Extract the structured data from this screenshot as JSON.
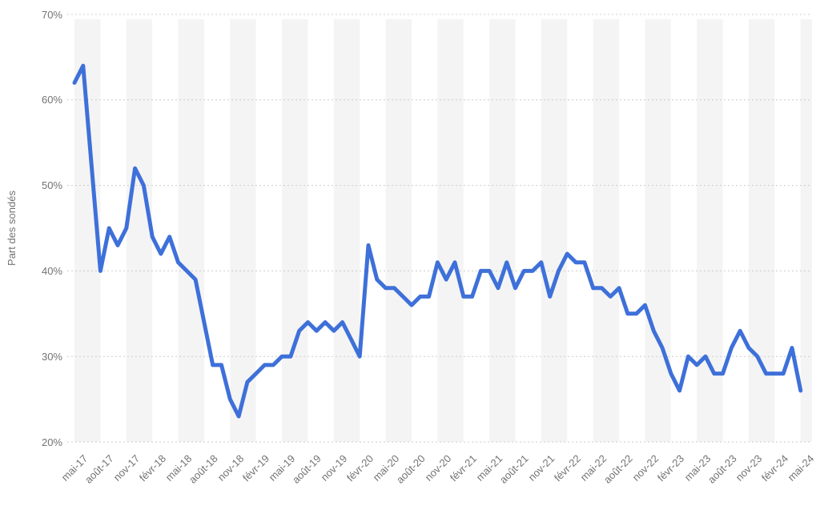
{
  "chart_data": {
    "type": "line",
    "title": "",
    "ylabel": "Part des sondés",
    "ylim": [
      20,
      70
    ],
    "ytick_values": [
      70,
      60,
      50,
      40,
      30,
      20
    ],
    "ytick_labels": [
      "70%",
      "60%",
      "50%",
      "40%",
      "30%",
      "20%"
    ],
    "x_tick_labels": [
      "mai-17",
      "août-17",
      "nov-17",
      "févr-18",
      "mai-18",
      "août-18",
      "nov-18",
      "févr-19",
      "mai-19",
      "août-19",
      "nov-19",
      "févr-20",
      "mai-20",
      "août-20",
      "nov-20",
      "févr-21",
      "mai-21",
      "août-21",
      "nov-21",
      "févr-22",
      "mai-22",
      "août-22",
      "nov-22",
      "févr-23",
      "mai-23",
      "août-23",
      "nov-23",
      "févr-24",
      "mai-24"
    ],
    "grid": "horizontal-dotted",
    "legend": "none",
    "background_stripes": "alternating-quarterly",
    "series": [
      {
        "name": "Part des sondés",
        "color": "#3E70D9",
        "x": [
          "mai-17",
          "juin-17",
          "juil-17",
          "août-17",
          "sept-17",
          "oct-17",
          "nov-17",
          "déc-17",
          "janv-18",
          "févr-18",
          "mars-18",
          "avr-18",
          "mai-18",
          "juin-18",
          "juil-18",
          "août-18",
          "sept-18",
          "oct-18",
          "nov-18",
          "déc-18",
          "janv-19",
          "févr-19",
          "mars-19",
          "avr-19",
          "mai-19",
          "juin-19",
          "juil-19",
          "août-19",
          "sept-19",
          "oct-19",
          "nov-19",
          "déc-19",
          "janv-20",
          "févr-20",
          "mars-20",
          "avr-20",
          "mai-20",
          "juin-20",
          "juil-20",
          "août-20",
          "sept-20",
          "oct-20",
          "nov-20",
          "déc-20",
          "janv-21",
          "févr-21",
          "mars-21",
          "avr-21",
          "mai-21",
          "juin-21",
          "juil-21",
          "août-21",
          "sept-21",
          "oct-21",
          "nov-21",
          "déc-21",
          "janv-22",
          "févr-22",
          "mars-22",
          "avr-22",
          "mai-22",
          "juin-22",
          "juil-22",
          "août-22",
          "sept-22",
          "oct-22",
          "nov-22",
          "déc-22",
          "janv-23",
          "févr-23",
          "mars-23",
          "avr-23",
          "mai-23",
          "juin-23",
          "juil-23",
          "août-23",
          "sept-23",
          "oct-23",
          "nov-23",
          "déc-23",
          "janv-24",
          "févr-24",
          "mars-24",
          "avr-24",
          "mai-24"
        ],
        "values": [
          62,
          64,
          52,
          40,
          45,
          43,
          45,
          52,
          50,
          44,
          42,
          44,
          41,
          40,
          39,
          34,
          29,
          29,
          25,
          23,
          27,
          28,
          29,
          29,
          30,
          30,
          33,
          34,
          33,
          34,
          33,
          34,
          32,
          30,
          43,
          39,
          38,
          38,
          37,
          36,
          37,
          37,
          41,
          39,
          41,
          37,
          37,
          40,
          40,
          38,
          41,
          38,
          40,
          40,
          41,
          37,
          40,
          42,
          41,
          41,
          38,
          38,
          37,
          38,
          35,
          35,
          36,
          33,
          31,
          28,
          26,
          30,
          29,
          30,
          28,
          28,
          31,
          33,
          31,
          30,
          28,
          28,
          28,
          31,
          26
        ]
      }
    ],
    "colors": {
      "line": "#3E70D9",
      "stripe": "#f4f4f4",
      "gridline": "#cccccc",
      "axis_text": "#737373"
    }
  }
}
